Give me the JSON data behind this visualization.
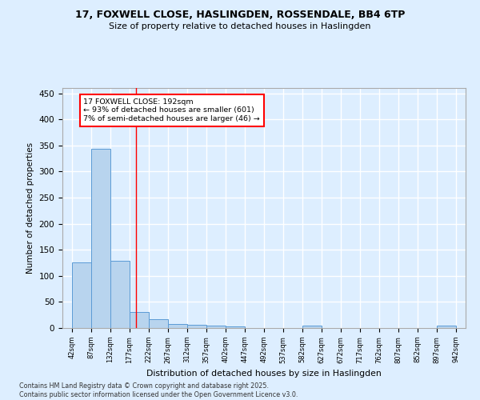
{
  "title_line1": "17, FOXWELL CLOSE, HASLINGDEN, ROSSENDALE, BB4 6TP",
  "title_line2": "Size of property relative to detached houses in Haslingden",
  "xlabel": "Distribution of detached houses by size in Haslingden",
  "ylabel": "Number of detached properties",
  "bar_edges": [
    42,
    87,
    132,
    177,
    222,
    267,
    312,
    357,
    402,
    447,
    492,
    537,
    582,
    627,
    672,
    717,
    762,
    807,
    852,
    897,
    942
  ],
  "bar_heights": [
    125,
    343,
    129,
    30,
    17,
    8,
    6,
    4,
    3,
    0,
    0,
    0,
    5,
    0,
    0,
    0,
    0,
    0,
    0,
    4,
    0
  ],
  "bar_color": "#b8d4ee",
  "bar_edge_color": "#5b9bd5",
  "background_color": "#ddeeff",
  "grid_color": "#ffffff",
  "vline_x": 192,
  "vline_color": "red",
  "annotation_text": "17 FOXWELL CLOSE: 192sqm\n← 93% of detached houses are smaller (601)\n7% of semi-detached houses are larger (46) →",
  "annotation_box_color": "white",
  "annotation_box_edge": "red",
  "ylim": [
    0,
    460
  ],
  "yticks": [
    0,
    50,
    100,
    150,
    200,
    250,
    300,
    350,
    400,
    450
  ],
  "footer_line1": "Contains HM Land Registry data © Crown copyright and database right 2025.",
  "footer_line2": "Contains public sector information licensed under the Open Government Licence v3.0."
}
